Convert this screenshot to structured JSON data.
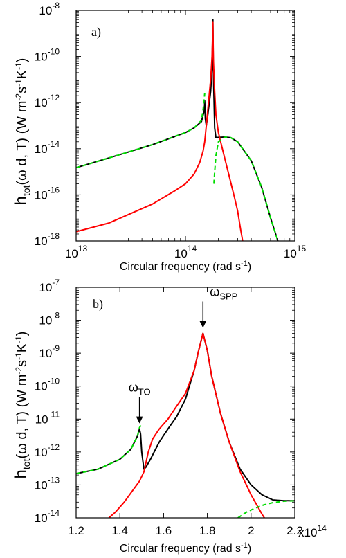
{
  "chart_data": [
    {
      "type": "line",
      "panel_label": "a)",
      "xlabel": "Circular frequency (rad s",
      "xlabel_sup": "-1",
      "xlabel_end": ")",
      "ylabel_main": "h",
      "ylabel_sub": "tot",
      "ylabel_rest": "(ω d, T)  (W m",
      "ylabel_sup1": "-2",
      "ylabel_mid": "s",
      "ylabel_sup2": "-1",
      "ylabel_mid2": "K",
      "ylabel_sup3": "-1",
      "ylabel_end": ")",
      "x_scale": "log",
      "y_scale": "log",
      "xlim": [
        10000000000000.0,
        1000000000000000.0
      ],
      "ylim": [
        1e-18,
        1e-08
      ],
      "x_ticks": [
        {
          "base": "10",
          "exp": "13",
          "value": 10000000000000.0
        },
        {
          "base": "10",
          "exp": "14",
          "value": 100000000000000.0
        },
        {
          "base": "10",
          "exp": "15",
          "value": 1000000000000000.0
        }
      ],
      "y_ticks": [
        {
          "base": "10",
          "exp": "-18",
          "value": 1e-18
        },
        {
          "base": "10",
          "exp": "-16",
          "value": 1e-16
        },
        {
          "base": "10",
          "exp": "-14",
          "value": 1e-14
        },
        {
          "base": "10",
          "exp": "-12",
          "value": 1e-12
        },
        {
          "base": "10",
          "exp": "-10",
          "value": 1e-10
        },
        {
          "base": "10",
          "exp": "-8",
          "value": 1e-08
        }
      ],
      "series": [
        {
          "color": "#000000",
          "style": "solid",
          "points": [
            [
              10000000000000.0,
              1.5e-15
            ],
            [
              20000000000000.0,
              4e-15
            ],
            [
              50000000000000.0,
              1.5e-14
            ],
            [
              100000000000000.0,
              5e-14
            ],
            [
              120000000000000.0,
              8e-14
            ],
            [
              140000000000000.0,
              1.5e-13
            ],
            [
              149000000000000.0,
              5e-13
            ],
            [
              150000000000000.0,
              1.2e-12
            ],
            [
              152000000000000.0,
              2e-13
            ],
            [
              155000000000000.0,
              1e-13
            ],
            [
              160000000000000.0,
              3e-13
            ],
            [
              170000000000000.0,
              3e-12
            ],
            [
              175000000000000.0,
              3e-11
            ],
            [
              178000000000000.0,
              4e-09
            ],
            [
              180000000000000.0,
              3e-11
            ],
            [
              182000000000000.0,
              2e-12
            ],
            [
              185000000000000.0,
              8e-14
            ],
            [
              190000000000000.0,
              3e-14
            ],
            [
              200000000000000.0,
              3.1e-14
            ],
            [
              230000000000000.0,
              3.2e-14
            ],
            [
              260000000000000.0,
              3e-14
            ],
            [
              300000000000000.0,
              2e-14
            ],
            [
              400000000000000.0,
              3e-15
            ],
            [
              500000000000000.0,
              2e-16
            ],
            [
              600000000000000.0,
              1e-17
            ],
            [
              700000000000000.0,
              1e-18
            ],
            [
              770000000000000.0,
              1.5e-19
            ]
          ]
        },
        {
          "color": "#ff0000",
          "style": "solid",
          "points": [
            [
              10000000000000.0,
              2.5e-18
            ],
            [
              20000000000000.0,
              6e-18
            ],
            [
              50000000000000.0,
              4e-17
            ],
            [
              80000000000000.0,
              1.5e-16
            ],
            [
              100000000000000.0,
              3e-16
            ],
            [
              120000000000000.0,
              8e-16
            ],
            [
              135000000000000.0,
              2.5e-15
            ],
            [
              145000000000000.0,
              8e-15
            ],
            [
              150000000000000.0,
              2e-14
            ],
            [
              155000000000000.0,
              1e-13
            ],
            [
              160000000000000.0,
              5e-13
            ],
            [
              170000000000000.0,
              1e-11
            ],
            [
              175000000000000.0,
              1e-10
            ],
            [
              178000000000000.0,
              3e-09
            ],
            [
              180000000000000.0,
              8e-11
            ],
            [
              185000000000000.0,
              3e-12
            ],
            [
              190000000000000.0,
              3e-13
            ],
            [
              200000000000000.0,
              5e-14
            ],
            [
              220000000000000.0,
              8e-15
            ],
            [
              250000000000000.0,
              7e-16
            ],
            [
              280000000000000.0,
              8e-17
            ],
            [
              300000000000000.0,
              2e-17
            ],
            [
              320000000000000.0,
              3e-18
            ],
            [
              340000000000000.0,
              6e-19
            ]
          ]
        },
        {
          "color": "#00dd00",
          "style": "dashed",
          "points": [
            [
              10000000000000.0,
              1.5e-15
            ],
            [
              20000000000000.0,
              4e-15
            ],
            [
              50000000000000.0,
              1.5e-14
            ],
            [
              100000000000000.0,
              5e-14
            ],
            [
              120000000000000.0,
              8e-14
            ],
            [
              140000000000000.0,
              1.7e-13
            ],
            [
              145000000000000.0,
              5e-13
            ],
            [
              150000000000000.0,
              2.5e-12
            ]
          ]
        },
        {
          "color": "#00dd00",
          "style": "dashed",
          "points": [
            [
              182000000000000.0,
              3e-16
            ],
            [
              185000000000000.0,
              1e-15
            ],
            [
              190000000000000.0,
              5e-15
            ],
            [
              200000000000000.0,
              2e-14
            ],
            [
              230000000000000.0,
              3.2e-14
            ],
            [
              260000000000000.0,
              3e-14
            ],
            [
              300000000000000.0,
              2e-14
            ],
            [
              400000000000000.0,
              3e-15
            ],
            [
              500000000000000.0,
              2e-16
            ],
            [
              600000000000000.0,
              1e-17
            ],
            [
              700000000000000.0,
              1e-18
            ],
            [
              770000000000000.0,
              1.5e-19
            ]
          ]
        }
      ]
    },
    {
      "type": "line",
      "panel_label": "b)",
      "xlabel": "Circular frequency (rad s",
      "xlabel_sup": "-1",
      "xlabel_end": ")",
      "x_multiplier_base": "x10",
      "x_multiplier_exp": "14",
      "ylabel_main": "h",
      "ylabel_sub": "tot",
      "ylabel_rest": "(ω d, T)  (W m",
      "ylabel_sup1": "-2",
      "ylabel_mid": "s",
      "ylabel_sup2": "-1",
      "ylabel_mid2": "K",
      "ylabel_sup3": "-1",
      "ylabel_end": ")",
      "x_scale": "linear",
      "y_scale": "log",
      "xlim": [
        1.2,
        2.2
      ],
      "ylim": [
        1e-14,
        1e-07
      ],
      "x_ticks": [
        {
          "label": "1.2",
          "value": 1.2
        },
        {
          "label": "1.4",
          "value": 1.4
        },
        {
          "label": "1.6",
          "value": 1.6
        },
        {
          "label": "1.8",
          "value": 1.8
        },
        {
          "label": "2",
          "value": 2.0
        },
        {
          "label": "2.2",
          "value": 2.2
        }
      ],
      "y_ticks": [
        {
          "base": "10",
          "exp": "-14",
          "value": 1e-14
        },
        {
          "base": "10",
          "exp": "-13",
          "value": 1e-13
        },
        {
          "base": "10",
          "exp": "-12",
          "value": 1e-12
        },
        {
          "base": "10",
          "exp": "-11",
          "value": 1e-11
        },
        {
          "base": "10",
          "exp": "-10",
          "value": 1e-10
        },
        {
          "base": "10",
          "exp": "-9",
          "value": 1e-09
        },
        {
          "base": "10",
          "exp": "-8",
          "value": 1e-08
        },
        {
          "base": "10",
          "exp": "-7",
          "value": 1e-07
        }
      ],
      "annotations": [
        {
          "symbol": "ω",
          "sub": "TO",
          "x": 1.49,
          "y": 5e-12
        },
        {
          "symbol": "ω",
          "sub": "SPP",
          "x": 1.78,
          "y": 4e-09
        }
      ],
      "series": [
        {
          "color": "#000000",
          "style": "solid",
          "points": [
            [
              1.2,
              2.2e-13
            ],
            [
              1.3,
              3e-13
            ],
            [
              1.4,
              6e-13
            ],
            [
              1.45,
              1.2e-12
            ],
            [
              1.48,
              3e-12
            ],
            [
              1.49,
              5e-12
            ],
            [
              1.495,
              3.5e-12
            ],
            [
              1.5,
              1e-12
            ],
            [
              1.51,
              3e-13
            ],
            [
              1.52,
              3.5e-13
            ],
            [
              1.54,
              6e-13
            ],
            [
              1.58,
              2e-12
            ],
            [
              1.62,
              5e-12
            ],
            [
              1.66,
              1.2e-11
            ],
            [
              1.7,
              4e-11
            ],
            [
              1.74,
              3e-10
            ],
            [
              1.76,
              1.2e-09
            ],
            [
              1.78,
              4e-09
            ],
            [
              1.8,
              1.2e-09
            ],
            [
              1.82,
              2e-10
            ],
            [
              1.86,
              1.5e-11
            ],
            [
              1.9,
              2e-12
            ],
            [
              1.95,
              3e-13
            ],
            [
              2.0,
              1e-13
            ],
            [
              2.05,
              5e-14
            ],
            [
              2.1,
              3.5e-14
            ],
            [
              2.15,
              3.3e-14
            ],
            [
              2.2,
              3.3e-14
            ]
          ]
        },
        {
          "color": "#ff0000",
          "style": "solid",
          "points": [
            [
              1.35,
              1e-14
            ],
            [
              1.38,
              1.5e-14
            ],
            [
              1.42,
              3e-14
            ],
            [
              1.46,
              7e-14
            ],
            [
              1.49,
              1.3e-13
            ],
            [
              1.51,
              2.5e-13
            ],
            [
              1.53,
              1e-12
            ],
            [
              1.55,
              2.5e-12
            ],
            [
              1.58,
              5e-12
            ],
            [
              1.62,
              1e-11
            ],
            [
              1.66,
              2.5e-11
            ],
            [
              1.7,
              6e-11
            ],
            [
              1.74,
              3e-10
            ],
            [
              1.76,
              1.2e-09
            ],
            [
              1.78,
              4e-09
            ],
            [
              1.8,
              1.2e-09
            ],
            [
              1.82,
              2e-10
            ],
            [
              1.86,
              1.5e-11
            ],
            [
              1.9,
              2e-12
            ],
            [
              1.95,
              2.5e-13
            ],
            [
              2.0,
              5e-14
            ],
            [
              2.05,
              1.3e-14
            ],
            [
              2.07,
              8e-15
            ]
          ]
        },
        {
          "color": "#00dd00",
          "style": "dashed",
          "points": [
            [
              1.2,
              2.2e-13
            ],
            [
              1.3,
              3e-13
            ],
            [
              1.4,
              6e-13
            ],
            [
              1.45,
              1.2e-12
            ],
            [
              1.48,
              3e-12
            ],
            [
              1.49,
              5.5e-12
            ],
            [
              1.5,
              7e-12
            ]
          ]
        },
        {
          "color": "#00dd00",
          "style": "dashed",
          "points": [
            [
              1.94,
              1e-14
            ],
            [
              1.98,
              1.5e-14
            ],
            [
              2.02,
              2e-14
            ],
            [
              2.06,
              2.5e-14
            ],
            [
              2.1,
              2.9e-14
            ],
            [
              2.15,
              3.2e-14
            ],
            [
              2.2,
              3.3e-14
            ]
          ]
        }
      ]
    }
  ]
}
